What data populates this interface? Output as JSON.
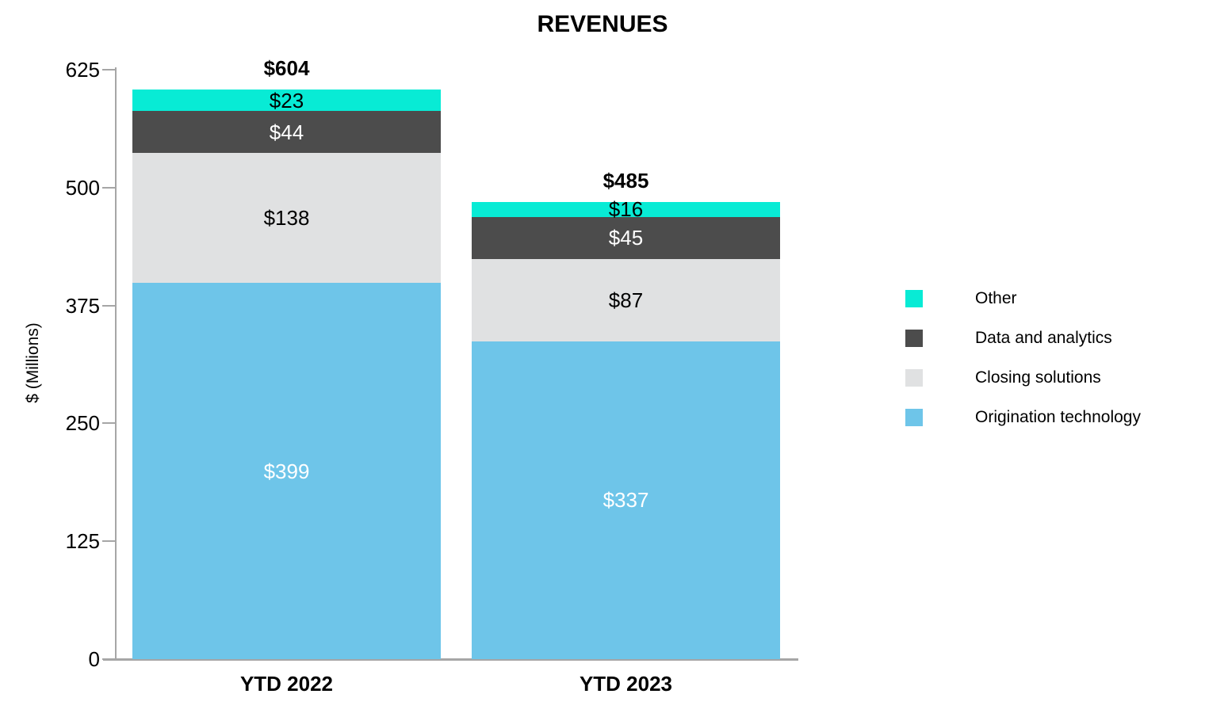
{
  "chart_data": {
    "type": "stacked-bar",
    "title": "REVENUES",
    "ylabel": "$ (Millions)",
    "value_prefix": "$",
    "categories": [
      "YTD 2022",
      "YTD 2023"
    ],
    "totals": [
      604,
      485
    ],
    "yticks": [
      0,
      125,
      250,
      375,
      500,
      625
    ],
    "ylim": [
      0,
      625
    ],
    "grid": "off",
    "legend_position": "right",
    "series": [
      {
        "name": "Origination technology",
        "color": "#6EC5E9",
        "label_color": "#FFFFFF",
        "values": [
          399,
          337
        ]
      },
      {
        "name": "Closing solutions",
        "color": "#E0E1E2",
        "label_color": "#000000",
        "values": [
          138,
          87
        ]
      },
      {
        "name": "Data and analytics",
        "color": "#4C4C4C",
        "label_color": "#FFFFFF",
        "values": [
          44,
          45
        ]
      },
      {
        "name": "Other",
        "color": "#08EBD5",
        "label_color": "#000000",
        "values": [
          23,
          16
        ]
      }
    ],
    "legend": [
      {
        "label": "Other",
        "color": "#08EBD5"
      },
      {
        "label": "Data and analytics",
        "color": "#4C4C4C"
      },
      {
        "label": "Closing solutions",
        "color": "#E0E1E2"
      },
      {
        "label": "Origination technology",
        "color": "#6EC5E9"
      }
    ],
    "axis_color": "#A6A6A6",
    "text_color": "#000000"
  }
}
